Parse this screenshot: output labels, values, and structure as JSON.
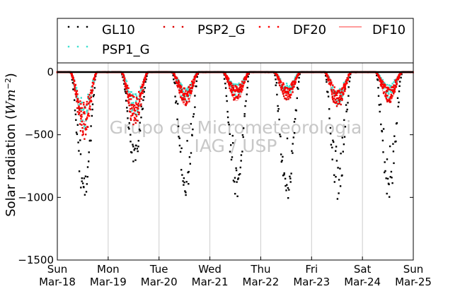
{
  "chart_data": {
    "type": "scatter",
    "ylabel_text": "Solar radiation (",
    "ylabel_unit": "Wm",
    "ylabel_exp": "−2",
    "ylabel_close": ")",
    "ylim": [
      -1500,
      75
    ],
    "xlim": [
      0,
      7
    ],
    "grid": "vertical",
    "legend_position": "top",
    "yticks": [
      0,
      -500,
      -1000,
      -1500
    ],
    "ytick_labels": [
      "0",
      "−500",
      "−1000",
      "−1500"
    ],
    "xticks": [
      {
        "day": "Sun",
        "date": "Mar-18"
      },
      {
        "day": "Mon",
        "date": "Mar-19"
      },
      {
        "day": "Tue",
        "date": "Mar-20"
      },
      {
        "day": "Wed",
        "date": "Mar-21"
      },
      {
        "day": "Thu",
        "date": "Mar-22"
      },
      {
        "day": "Fri",
        "date": "Mar-23"
      },
      {
        "day": "Sat",
        "date": "Mar-24"
      },
      {
        "day": "Sun",
        "date": "Mar-25"
      }
    ],
    "watermark_line1": "Grupo de Micrometeorologia",
    "watermark_line2": "IAG / USP",
    "series": [
      {
        "name": "GL10",
        "color": "#000000",
        "marker": "dot",
        "day_peaks": [
          -1000,
          -720,
          -980,
          -1000,
          -1030,
          -1040,
          -1010
        ]
      },
      {
        "name": "PSP2_G",
        "color": "#dd0000",
        "marker": "dot",
        "day_peaks": [
          -470,
          -380,
          -320,
          -280,
          -270,
          -260,
          -290
        ]
      },
      {
        "name": "DF20",
        "color": "#ff0000",
        "marker": "dot",
        "day_peaks": [
          -440,
          -350,
          -300,
          -260,
          -250,
          -250,
          -270
        ]
      },
      {
        "name": "DF10",
        "color": "#ff6060",
        "marker": "line",
        "day_peaks": [
          -420,
          -330,
          -280,
          -240,
          -230,
          -240,
          -250
        ]
      },
      {
        "name": "PSP1_G",
        "color": "#40e0d0",
        "marker": "dot",
        "day_peaks": [
          -400,
          -320,
          -270,
          -230,
          -220,
          -230,
          -240
        ]
      }
    ]
  }
}
